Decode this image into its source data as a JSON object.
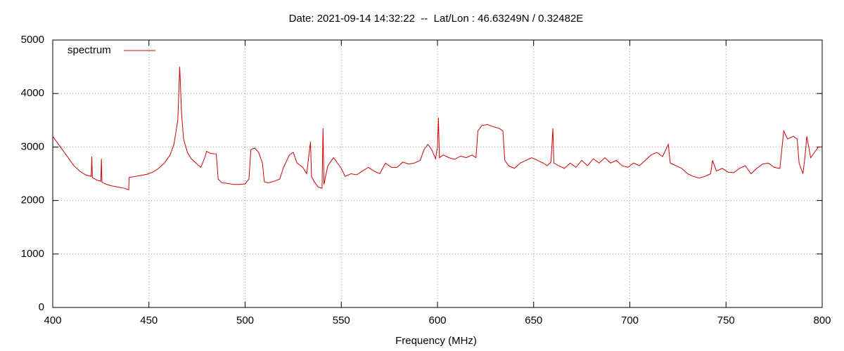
{
  "chart_data": {
    "type": "line",
    "title": "Date: 2021-09-14 14:32:22  --  Lat/Lon : 46.63249N / 0.32482E",
    "x_label": "Frequency (MHz)",
    "xlim": [
      400,
      800
    ],
    "xticks": [
      400,
      450,
      500,
      550,
      600,
      650,
      700,
      750,
      800
    ],
    "ylim": [
      0,
      5000
    ],
    "yticks": [
      0,
      1000,
      2000,
      3000,
      4000,
      5000
    ],
    "grid": true,
    "legend": "top-left",
    "x": [
      400,
      402,
      405,
      408,
      411,
      414,
      417,
      420,
      420.3,
      420.6,
      423,
      425,
      425.3,
      425.6,
      428,
      431,
      434,
      437,
      439.5,
      439.7,
      443,
      446,
      449,
      452,
      455,
      458,
      461,
      463,
      465,
      466,
      467,
      468,
      470,
      472,
      475,
      477,
      479,
      480,
      482,
      485,
      486,
      488,
      491,
      494,
      497,
      500,
      502,
      503,
      505,
      507,
      509,
      510,
      512,
      515,
      518,
      520,
      523,
      525,
      527,
      530,
      532,
      534,
      534.5,
      536,
      538,
      540,
      540.5,
      541,
      543,
      546,
      548,
      550,
      552,
      555,
      558,
      561,
      564,
      567,
      570,
      573,
      576,
      579,
      582,
      585,
      588,
      591,
      593,
      595,
      597,
      599,
      600,
      600.5,
      601,
      603,
      606,
      609,
      612,
      615,
      618,
      620,
      621,
      623,
      626,
      629,
      632,
      634,
      635,
      637,
      640,
      643,
      646,
      649,
      652,
      655,
      657,
      659,
      660,
      660.5,
      663,
      666,
      669,
      672,
      675,
      678,
      681,
      684,
      687,
      690,
      693,
      696,
      699,
      702,
      705,
      708,
      711,
      714,
      717,
      720,
      721,
      724,
      727,
      730,
      733,
      736,
      739,
      742,
      743,
      745,
      748,
      751,
      754,
      757,
      760,
      763,
      766,
      769,
      772,
      775,
      778,
      779,
      780,
      782,
      785,
      787,
      788,
      790,
      791,
      792,
      794,
      796,
      798,
      800
    ],
    "series": [
      {
        "name": "spectrum",
        "color": "#cc0000",
        "values": [
          3200,
          3100,
          2950,
          2800,
          2650,
          2550,
          2480,
          2450,
          2820,
          2430,
          2380,
          2360,
          2780,
          2340,
          2300,
          2270,
          2250,
          2230,
          2200,
          2430,
          2450,
          2470,
          2490,
          2530,
          2600,
          2700,
          2850,
          3050,
          3500,
          4500,
          3600,
          3150,
          2900,
          2780,
          2680,
          2620,
          2800,
          2920,
          2880,
          2870,
          2400,
          2330,
          2320,
          2300,
          2300,
          2310,
          2400,
          2950,
          2980,
          2900,
          2700,
          2350,
          2330,
          2360,
          2400,
          2620,
          2850,
          2900,
          2700,
          2620,
          2500,
          3100,
          2450,
          2350,
          2250,
          2230,
          3350,
          2300,
          2650,
          2800,
          2700,
          2600,
          2450,
          2500,
          2480,
          2550,
          2620,
          2550,
          2500,
          2700,
          2620,
          2620,
          2720,
          2680,
          2700,
          2750,
          2950,
          3050,
          2950,
          2780,
          3000,
          3550,
          2800,
          2850,
          2800,
          2770,
          2830,
          2800,
          2850,
          2800,
          3300,
          3400,
          3420,
          3380,
          3350,
          3300,
          2750,
          2650,
          2600,
          2700,
          2750,
          2800,
          2750,
          2700,
          2650,
          2720,
          3350,
          2700,
          2650,
          2600,
          2700,
          2620,
          2750,
          2650,
          2780,
          2700,
          2800,
          2700,
          2750,
          2650,
          2620,
          2700,
          2650,
          2750,
          2850,
          2900,
          2820,
          3050,
          2700,
          2650,
          2600,
          2500,
          2450,
          2420,
          2450,
          2500,
          2750,
          2550,
          2600,
          2530,
          2520,
          2600,
          2650,
          2500,
          2600,
          2680,
          2700,
          2620,
          2600,
          2950,
          3300,
          3150,
          3200,
          3150,
          2700,
          2500,
          2800,
          3200,
          2800,
          2900,
          3000,
          3000
        ]
      }
    ]
  }
}
